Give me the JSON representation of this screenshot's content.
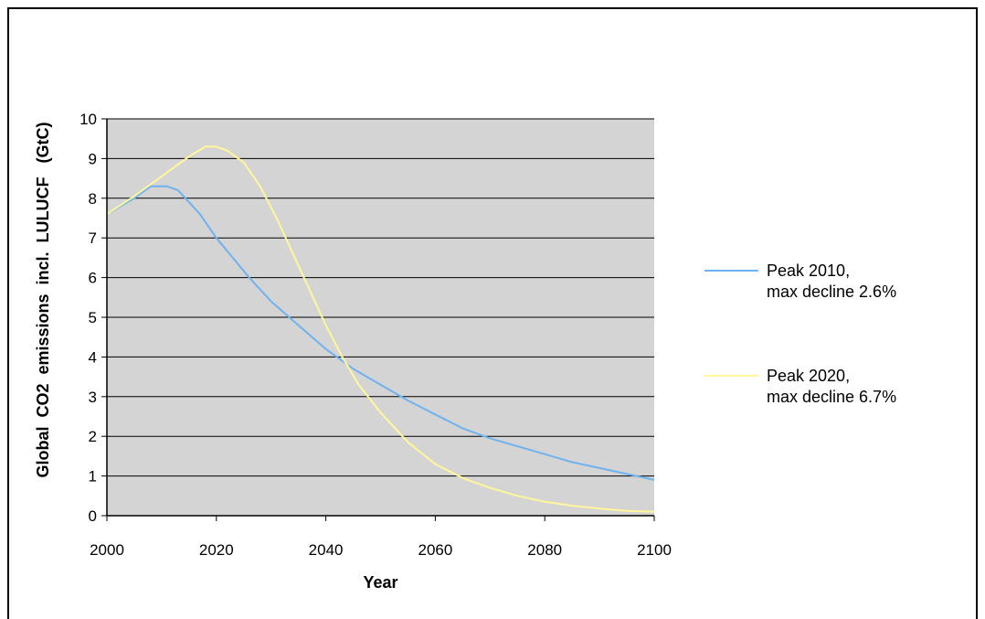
{
  "chart_data": {
    "type": "line",
    "xlabel": "Year",
    "ylabel": "Global  CO2  emissions  incl.  LULUCF   (GtC)",
    "xlim": [
      2000,
      2100
    ],
    "ylim": [
      0,
      10
    ],
    "x_ticks": [
      "2000",
      "2020",
      "2040",
      "2060",
      "2080",
      "2100"
    ],
    "y_ticks": [
      "0",
      "1",
      "2",
      "3",
      "4",
      "5",
      "6",
      "7",
      "8",
      "9",
      "10"
    ],
    "grid": "horizontal",
    "plot_background": "#d4d4d4",
    "legend_position": "right",
    "series": [
      {
        "name_lines": [
          "Peak 2010,",
          "max decline 2.6%"
        ],
        "color": "#6fb2f0",
        "points": [
          [
            2000,
            7.6
          ],
          [
            2005,
            8.0
          ],
          [
            2008,
            8.3
          ],
          [
            2011,
            8.3
          ],
          [
            2013,
            8.2
          ],
          [
            2015,
            7.9
          ],
          [
            2017,
            7.6
          ],
          [
            2020,
            7.0
          ],
          [
            2023,
            6.5
          ],
          [
            2026,
            6.0
          ],
          [
            2030,
            5.4
          ],
          [
            2035,
            4.8
          ],
          [
            2040,
            4.2
          ],
          [
            2045,
            3.7
          ],
          [
            2050,
            3.3
          ],
          [
            2055,
            2.9
          ],
          [
            2060,
            2.55
          ],
          [
            2065,
            2.2
          ],
          [
            2070,
            1.95
          ],
          [
            2075,
            1.75
          ],
          [
            2080,
            1.55
          ],
          [
            2085,
            1.35
          ],
          [
            2090,
            1.2
          ],
          [
            2095,
            1.05
          ],
          [
            2100,
            0.9
          ]
        ]
      },
      {
        "name_lines": [
          "Peak 2020,",
          "max decline 6.7%"
        ],
        "color": "#fff79a",
        "points": [
          [
            2000,
            7.6
          ],
          [
            2005,
            8.05
          ],
          [
            2010,
            8.55
          ],
          [
            2015,
            9.05
          ],
          [
            2018,
            9.3
          ],
          [
            2020,
            9.3
          ],
          [
            2022,
            9.2
          ],
          [
            2025,
            8.9
          ],
          [
            2028,
            8.3
          ],
          [
            2031,
            7.5
          ],
          [
            2034,
            6.6
          ],
          [
            2037,
            5.7
          ],
          [
            2040,
            4.8
          ],
          [
            2043,
            4.0
          ],
          [
            2046,
            3.3
          ],
          [
            2050,
            2.6
          ],
          [
            2055,
            1.85
          ],
          [
            2060,
            1.3
          ],
          [
            2065,
            0.95
          ],
          [
            2070,
            0.7
          ],
          [
            2075,
            0.5
          ],
          [
            2080,
            0.35
          ],
          [
            2085,
            0.25
          ],
          [
            2090,
            0.18
          ],
          [
            2095,
            0.12
          ],
          [
            2100,
            0.1
          ]
        ]
      }
    ]
  }
}
